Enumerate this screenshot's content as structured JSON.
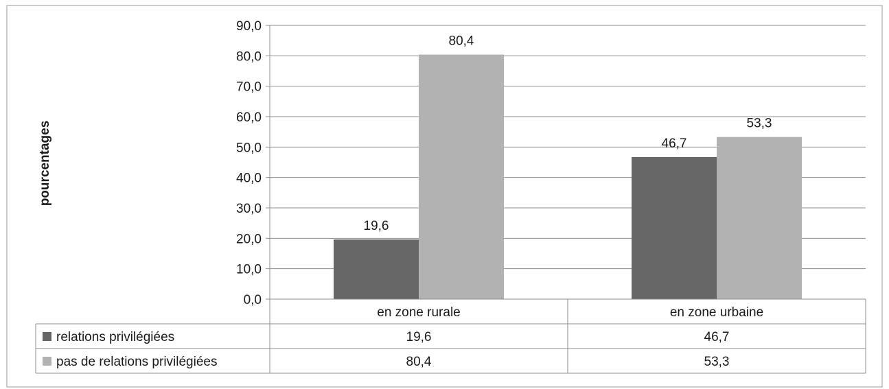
{
  "chart_data": {
    "type": "bar",
    "title": "",
    "xlabel": "",
    "ylabel": "pourcentages",
    "ylim": [
      0,
      90
    ],
    "ytick_step": 10,
    "ytick_labels": [
      "0,0",
      "10,0",
      "20,0",
      "30,0",
      "40,0",
      "50,0",
      "60,0",
      "70,0",
      "80,0",
      "90,0"
    ],
    "grid": true,
    "legend": "data-table-left",
    "categories": [
      "en zone rurale",
      "en zone urbaine"
    ],
    "series": [
      {
        "name": "relations privilégiées",
        "values": [
          19.6,
          46.7
        ],
        "labels": [
          "19,6",
          "46,7"
        ],
        "color": "#666666"
      },
      {
        "name": "pas de relations privilégiées",
        "values": [
          80.4,
          53.3
        ],
        "labels": [
          "80,4",
          "53,3"
        ],
        "color": "#b2b2b2"
      }
    ]
  }
}
